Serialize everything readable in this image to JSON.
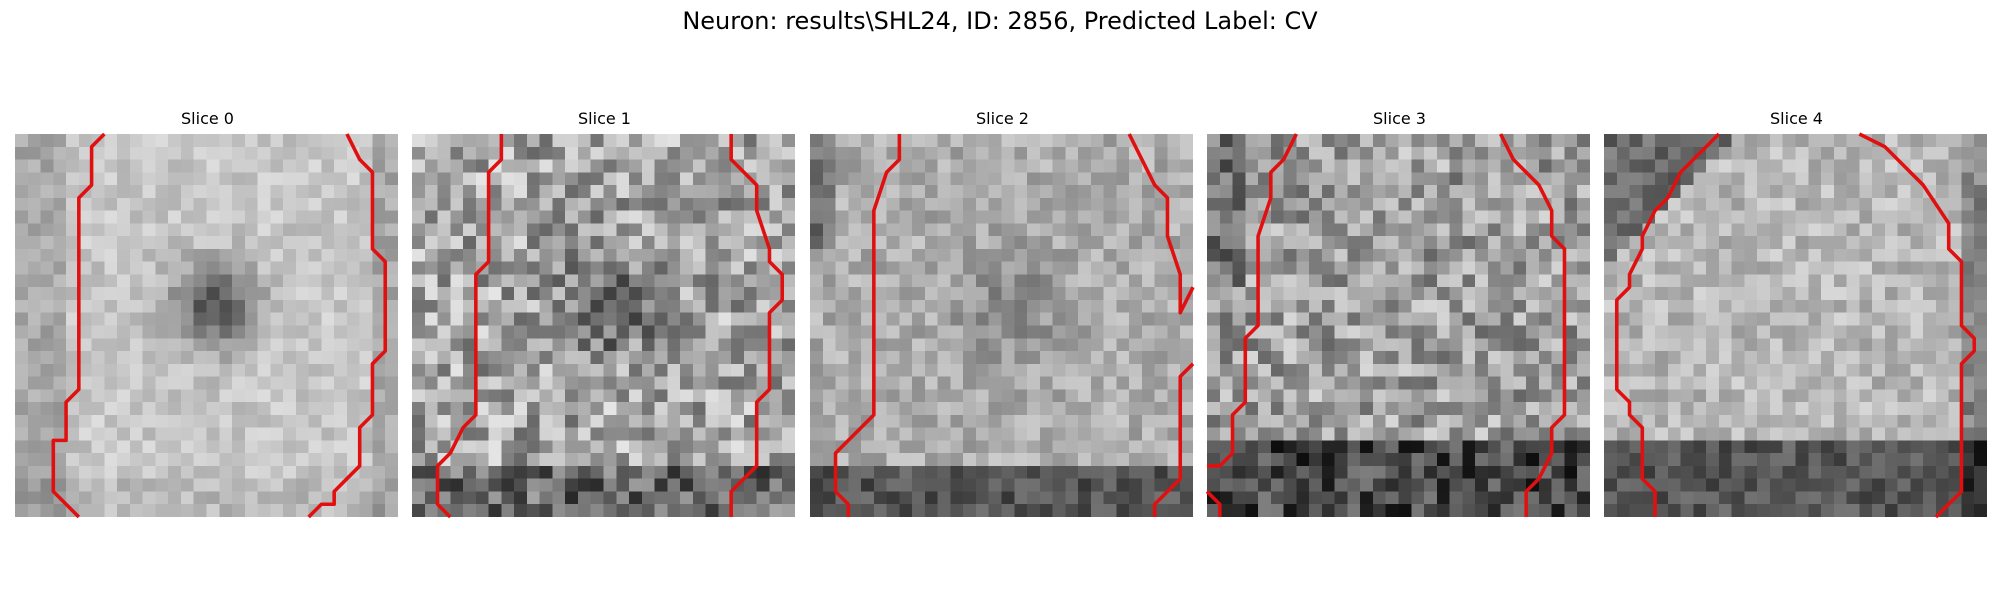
{
  "figure": {
    "suptitle": "Neuron: results\\SHL24, ID: 2856, Predicted Label: CV",
    "contour_color": "#e01010",
    "grid_size": 30,
    "panels": [
      {
        "title": "Slice 0",
        "pattern": "ring-dark-center",
        "seed": 11,
        "contour_left": [
          [
            7,
            0
          ],
          [
            6,
            1
          ],
          [
            6,
            4
          ],
          [
            5,
            5
          ],
          [
            5,
            20
          ],
          [
            4,
            21
          ],
          [
            4,
            24
          ],
          [
            3,
            24
          ],
          [
            3,
            28
          ],
          [
            5,
            30
          ]
        ],
        "contour_right": [
          [
            26,
            0
          ],
          [
            27,
            2
          ],
          [
            28,
            3
          ],
          [
            28,
            9
          ],
          [
            29,
            10
          ],
          [
            29,
            17
          ],
          [
            28,
            18
          ],
          [
            28,
            22
          ],
          [
            27,
            23
          ],
          [
            27,
            26
          ],
          [
            26,
            27
          ],
          [
            25,
            28
          ],
          [
            25,
            29
          ],
          [
            24,
            29
          ],
          [
            23,
            30
          ]
        ]
      },
      {
        "title": "Slice 1",
        "pattern": "noisy-dark-center",
        "seed": 23,
        "contour_left": [
          [
            7,
            0
          ],
          [
            7,
            2
          ],
          [
            6,
            3
          ],
          [
            6,
            10
          ],
          [
            5,
            11
          ],
          [
            5,
            22
          ],
          [
            4,
            23
          ],
          [
            3,
            25
          ],
          [
            2,
            26
          ],
          [
            2,
            29
          ],
          [
            3,
            30
          ]
        ],
        "contour_right": [
          [
            25,
            0
          ],
          [
            25,
            2
          ],
          [
            27,
            4
          ],
          [
            27,
            6
          ],
          [
            28,
            9
          ],
          [
            28,
            10
          ],
          [
            29,
            11
          ],
          [
            29,
            13
          ],
          [
            28,
            14
          ],
          [
            28,
            20
          ],
          [
            27,
            21
          ],
          [
            27,
            26
          ],
          [
            26,
            27
          ],
          [
            25,
            28
          ],
          [
            25,
            30
          ]
        ]
      },
      {
        "title": "Slice 2",
        "pattern": "bright-dark-bottom",
        "seed": 37,
        "contour_left": [
          [
            7,
            0
          ],
          [
            7,
            2
          ],
          [
            6,
            3
          ],
          [
            5,
            6
          ],
          [
            5,
            22
          ],
          [
            4,
            23
          ],
          [
            3,
            24
          ],
          [
            2,
            25
          ],
          [
            2,
            28
          ],
          [
            3,
            29
          ],
          [
            3,
            30
          ]
        ],
        "contour_right": [
          [
            25,
            0
          ],
          [
            26,
            2
          ],
          [
            27,
            4
          ],
          [
            28,
            5
          ],
          [
            28,
            8
          ],
          [
            29,
            11
          ],
          [
            29,
            14
          ],
          [
            30,
            12
          ]
        ],
        "contour_extra": [
          [
            30,
            18
          ],
          [
            29,
            19
          ],
          [
            29,
            27
          ],
          [
            28,
            28
          ],
          [
            27,
            29
          ],
          [
            27,
            30
          ]
        ]
      },
      {
        "title": "Slice 3",
        "pattern": "noisy-dark-bottom",
        "seed": 41,
        "contour_left": [
          [
            7,
            0
          ],
          [
            6,
            2
          ],
          [
            5,
            3
          ],
          [
            5,
            5
          ],
          [
            4,
            8
          ],
          [
            4,
            15
          ],
          [
            3,
            16
          ],
          [
            3,
            21
          ],
          [
            2,
            22
          ],
          [
            2,
            25
          ],
          [
            1,
            26
          ],
          [
            0,
            26
          ]
        ],
        "contour_right": [
          [
            23,
            0
          ],
          [
            24,
            2
          ],
          [
            26,
            4
          ],
          [
            27,
            6
          ],
          [
            27,
            8
          ],
          [
            28,
            9
          ],
          [
            28,
            22
          ],
          [
            27,
            23
          ],
          [
            27,
            25
          ],
          [
            26,
            27
          ],
          [
            25,
            28
          ],
          [
            25,
            29
          ],
          [
            25,
            30
          ]
        ],
        "contour_extra": [
          [
            0,
            28
          ],
          [
            1,
            29
          ],
          [
            1,
            30
          ]
        ]
      },
      {
        "title": "Slice 4",
        "pattern": "ring-dark-topleft",
        "seed": 53,
        "contour_left": [
          [
            9,
            0
          ],
          [
            8,
            1
          ],
          [
            7,
            2
          ],
          [
            6,
            3
          ],
          [
            5,
            5
          ],
          [
            4,
            6
          ],
          [
            3,
            8
          ],
          [
            3,
            9
          ],
          [
            2,
            11
          ],
          [
            2,
            12
          ],
          [
            1,
            13
          ],
          [
            1,
            20
          ],
          [
            2,
            21
          ],
          [
            2,
            22
          ],
          [
            3,
            23
          ],
          [
            3,
            25
          ],
          [
            3,
            27
          ],
          [
            4,
            28
          ],
          [
            4,
            30
          ]
        ],
        "contour_right": [
          [
            20,
            0
          ],
          [
            22,
            1
          ],
          [
            23,
            2
          ],
          [
            25,
            4
          ],
          [
            27,
            7
          ],
          [
            27,
            9
          ],
          [
            28,
            10
          ],
          [
            28,
            15
          ],
          [
            29,
            16
          ],
          [
            29,
            17
          ],
          [
            28,
            18
          ],
          [
            28,
            19
          ],
          [
            28,
            28
          ],
          [
            27,
            29
          ],
          [
            26,
            30
          ]
        ]
      }
    ]
  }
}
